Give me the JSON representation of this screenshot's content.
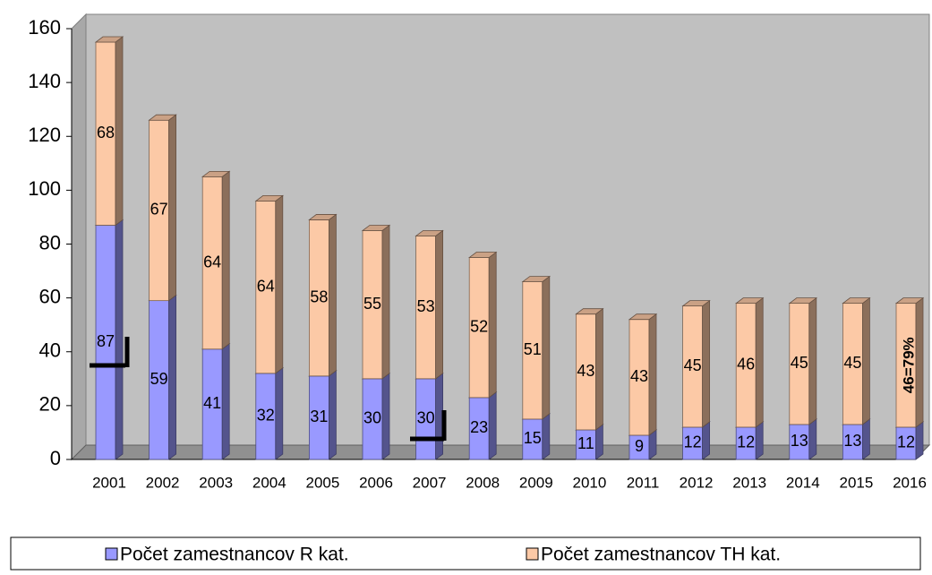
{
  "chart_data": {
    "type": "bar",
    "stacked": true,
    "categories": [
      "2001",
      "2002",
      "2003",
      "2004",
      "2005",
      "2006",
      "2007",
      "2008",
      "2009",
      "2010",
      "2011",
      "2012",
      "2013",
      "2014",
      "2015",
      "2016"
    ],
    "series": [
      {
        "name": "Počet zamestnancov R kat.",
        "color": "#9999ff",
        "values": [
          87,
          59,
          41,
          32,
          31,
          30,
          30,
          23,
          15,
          11,
          9,
          12,
          12,
          13,
          13,
          12
        ]
      },
      {
        "name": "Počet zamestnancov TH kat.",
        "color": "#fcc9a6",
        "values": [
          68,
          67,
          64,
          64,
          58,
          55,
          53,
          52,
          51,
          43,
          43,
          45,
          46,
          45,
          45,
          46
        ],
        "value_labels": [
          "68",
          "67",
          "64",
          "64",
          "58",
          "55",
          "53",
          "52",
          "51",
          "43",
          "43",
          "45",
          "46",
          "45",
          "45",
          "46=79%"
        ]
      }
    ],
    "ylim": [
      0,
      160
    ],
    "yticks": [
      0,
      20,
      40,
      60,
      80,
      100,
      120,
      140,
      160
    ],
    "grid": false,
    "legend": "bottom"
  }
}
